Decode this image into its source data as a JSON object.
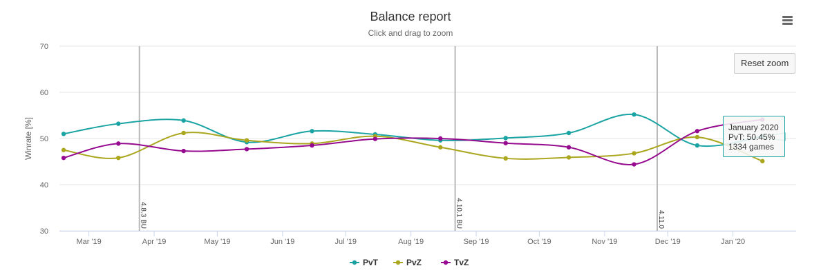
{
  "title": "Balance report",
  "subtitle": "Click and drag to zoom",
  "reset_zoom_label": "Reset zoom",
  "menu_icon": "hamburger-menu-icon",
  "tooltip": {
    "line1": "January 2020",
    "line2": "PvT: 50.45%",
    "line3": "1334 games",
    "series": "PvT"
  },
  "chart_data": {
    "type": "line",
    "title": "Balance report",
    "subtitle": "Click and drag to zoom",
    "ylabel": "Winrate [%]",
    "xlabel": "",
    "ylim": [
      30,
      70
    ],
    "yticks": [
      30,
      40,
      50,
      60,
      70
    ],
    "xlim": [
      "2019-02-15",
      "2020-01-31"
    ],
    "xticks": [
      {
        "date": "2019-03-01",
        "label": "Mar '19"
      },
      {
        "date": "2019-04-01",
        "label": "Apr '19"
      },
      {
        "date": "2019-05-01",
        "label": "May '19"
      },
      {
        "date": "2019-06-01",
        "label": "Jun '19"
      },
      {
        "date": "2019-07-01",
        "label": "Jul '19"
      },
      {
        "date": "2019-08-01",
        "label": "Aug '19"
      },
      {
        "date": "2019-09-01",
        "label": "Sep '19"
      },
      {
        "date": "2019-10-01",
        "label": "Oct '19"
      },
      {
        "date": "2019-11-01",
        "label": "Nov '19"
      },
      {
        "date": "2019-12-01",
        "label": "Dec '19"
      },
      {
        "date": "2020-01-01",
        "label": "Jan '20"
      }
    ],
    "x": [
      "2019-02-17",
      "2019-03-15",
      "2019-04-15",
      "2019-05-15",
      "2019-06-15",
      "2019-07-15",
      "2019-08-15",
      "2019-09-15",
      "2019-10-15",
      "2019-11-15",
      "2019-12-15",
      "2020-01-15"
    ],
    "grid": true,
    "legend": "bottom-center",
    "series": [
      {
        "name": "PvT",
        "color": "#1aa3a3",
        "values": [
          51.0,
          53.2,
          53.9,
          49.2,
          51.6,
          50.9,
          49.6,
          50.1,
          51.2,
          55.2,
          48.5,
          50.45
        ]
      },
      {
        "name": "PvZ",
        "color": "#aaa61e",
        "values": [
          47.5,
          45.8,
          51.2,
          49.6,
          48.9,
          50.5,
          48.1,
          45.7,
          45.9,
          46.8,
          50.3,
          45.1
        ]
      },
      {
        "name": "TvZ",
        "color": "#960a8f",
        "values": [
          45.8,
          48.9,
          47.3,
          47.7,
          48.5,
          49.9,
          50.0,
          49.0,
          48.1,
          44.4,
          51.6,
          54.1
        ]
      }
    ],
    "plot_lines": [
      {
        "date": "2019-03-25",
        "label": "4.8.3 BU"
      },
      {
        "date": "2019-08-22",
        "label": "4.10.1 BU"
      },
      {
        "date": "2019-11-26",
        "label": "4.11.0"
      }
    ]
  }
}
